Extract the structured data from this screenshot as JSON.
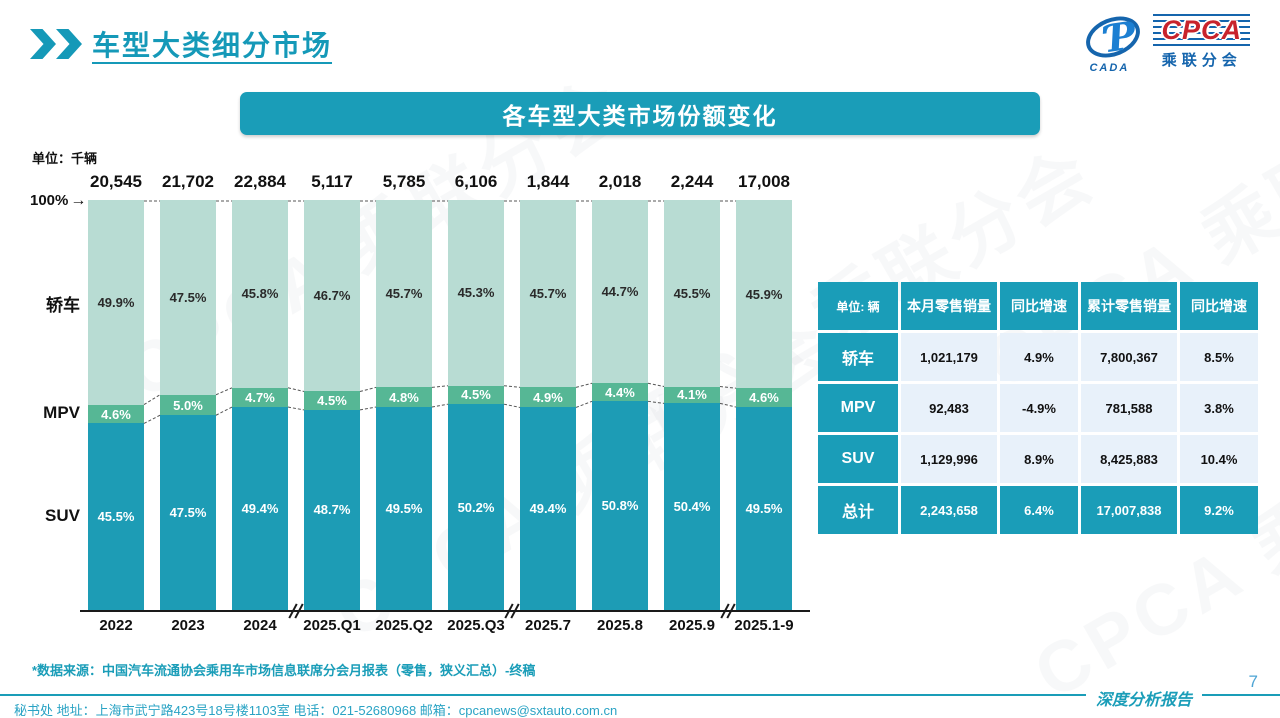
{
  "header": {
    "title": "车型大类细分市场"
  },
  "logo": {
    "acronym": "CPCA",
    "subtitle": "乘联分会",
    "emblem_text": "CADA",
    "emblem_glyph": "Ƥ"
  },
  "watermark": "CPCA 乘联分会",
  "banner": {
    "title": "各车型大类市场份额变化"
  },
  "chart": {
    "unit_label": "单位：千辆",
    "top_axis_label": "100%",
    "arrow": "→"
  },
  "chart_data": {
    "type": "bar",
    "stacked": true,
    "title": "各车型大类市场份额变化",
    "unit": "千辆",
    "ylim": [
      0,
      100
    ],
    "grid": false,
    "categories": [
      "2022",
      "2023",
      "2024",
      "2025.Q1",
      "2025.Q2",
      "2025.Q3",
      "2025.7",
      "2025.8",
      "2025.9",
      "2025.1-9"
    ],
    "totals": [
      "20,545",
      "21,702",
      "22,884",
      "5,117",
      "5,785",
      "6,106",
      "1,844",
      "2,018",
      "2,244",
      "17,008"
    ],
    "series": [
      {
        "name": "轿车",
        "color": "#b8dcd3",
        "values": [
          49.9,
          47.5,
          45.8,
          46.7,
          45.7,
          45.3,
          45.7,
          44.7,
          45.5,
          45.9
        ]
      },
      {
        "name": "MPV",
        "color": "#56b795",
        "values": [
          4.6,
          5.0,
          4.7,
          4.5,
          4.8,
          4.5,
          4.9,
          4.4,
          4.1,
          4.6
        ]
      },
      {
        "name": "SUV",
        "color": "#1d9cb5",
        "values": [
          45.5,
          47.5,
          49.4,
          48.7,
          49.5,
          50.2,
          49.4,
          50.8,
          50.4,
          49.5
        ]
      }
    ],
    "axis_breaks_after": [
      2,
      5,
      8
    ],
    "accent_color": "#1a9db8"
  },
  "table": {
    "headers": [
      "单位: 辆",
      "本月零售销量",
      "同比增速",
      "累计零售销量",
      "同比增速"
    ],
    "rows": [
      {
        "label": "轿车",
        "cells": [
          "1,021,179",
          "4.9%",
          "7,800,367",
          "8.5%"
        ],
        "highlight": false
      },
      {
        "label": "MPV",
        "cells": [
          "92,483",
          "-4.9%",
          "781,588",
          "3.8%"
        ],
        "highlight": false
      },
      {
        "label": "SUV",
        "cells": [
          "1,129,996",
          "8.9%",
          "8,425,883",
          "10.4%"
        ],
        "highlight": false
      },
      {
        "label": "总计",
        "cells": [
          "2,243,658",
          "6.4%",
          "17,007,838",
          "9.2%"
        ],
        "highlight": true
      }
    ]
  },
  "footer": {
    "source_note": "*数据来源：中国汽车流通协会乘用车市场信息联席分会月报表（零售，狭义汇总）-终稿",
    "contact": "秘书处  地址：上海市武宁路423号18号楼1103室  电话：021-52680968   邮箱：cpcanews@sxtauto.com.cn",
    "report_label": "深度分析报告",
    "page_number": "7"
  }
}
